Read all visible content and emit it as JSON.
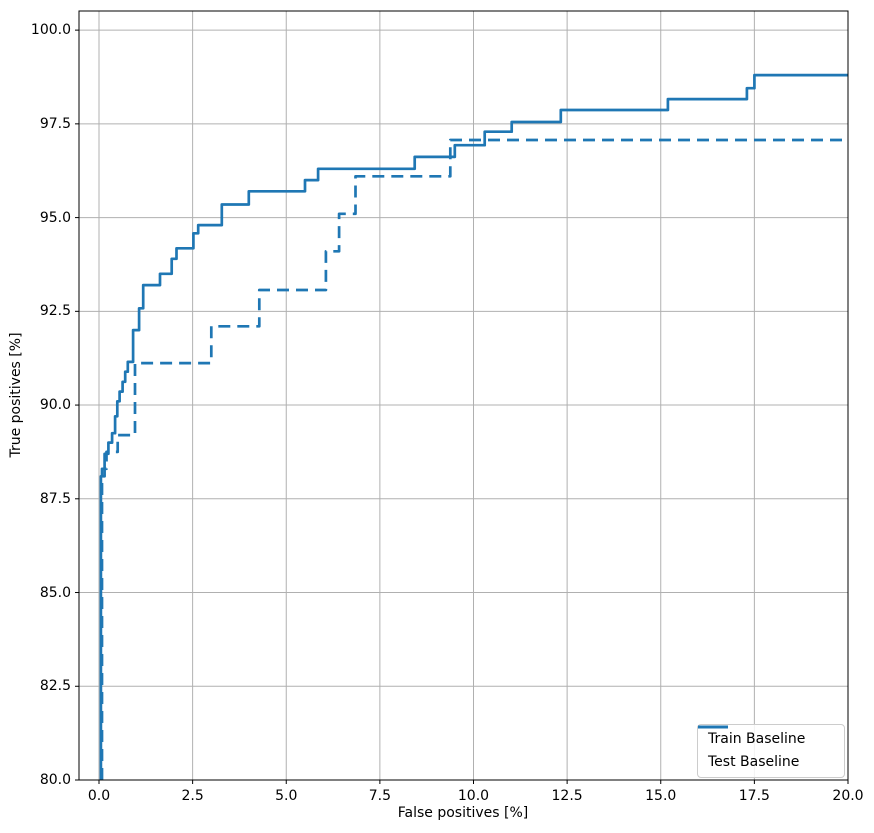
{
  "chart_data": {
    "type": "line",
    "title": "",
    "xlabel": "False positives [%]",
    "ylabel": "True positives [%]",
    "xlim": [
      -0.534,
      20.0
    ],
    "ylim": [
      80.0,
      100.51
    ],
    "x_ticks": [
      "0.0",
      "2.5",
      "5.0",
      "7.5",
      "10.0",
      "12.5",
      "15.0",
      "17.5",
      "20.0"
    ],
    "y_ticks": [
      "80.0",
      "82.5",
      "85.0",
      "87.5",
      "90.0",
      "92.5",
      "95.0",
      "97.5",
      "100.0"
    ],
    "grid": true,
    "grid_color": "#b0b0b0",
    "line_color": "#1f77b4",
    "legend_position": "lower right",
    "series": [
      {
        "name": "Train Baseline",
        "style": "solid",
        "drawstyle": "steps-post",
        "end_x": 20.0,
        "steps": [
          [
            0.05,
            80.0
          ],
          [
            0.05,
            88.1
          ],
          [
            0.15,
            88.7
          ],
          [
            0.25,
            89.0
          ],
          [
            0.35,
            89.25
          ],
          [
            0.43,
            89.7
          ],
          [
            0.49,
            90.1
          ],
          [
            0.55,
            90.36
          ],
          [
            0.63,
            90.62
          ],
          [
            0.7,
            90.89
          ],
          [
            0.77,
            91.15
          ],
          [
            0.91,
            92.0
          ],
          [
            1.07,
            92.58
          ],
          [
            1.18,
            93.2
          ],
          [
            1.63,
            93.5
          ],
          [
            1.94,
            93.9
          ],
          [
            2.07,
            94.18
          ],
          [
            2.52,
            94.58
          ],
          [
            2.65,
            94.8
          ],
          [
            3.28,
            95.35
          ],
          [
            4.0,
            95.7
          ],
          [
            5.5,
            96.0
          ],
          [
            5.85,
            96.3
          ],
          [
            8.43,
            96.62
          ],
          [
            9.5,
            96.93
          ],
          [
            10.3,
            97.29
          ],
          [
            11.02,
            97.55
          ],
          [
            12.33,
            97.87
          ],
          [
            15.19,
            98.16
          ],
          [
            17.3,
            98.45
          ],
          [
            17.5,
            98.8
          ]
        ]
      },
      {
        "name": "Test Baseline",
        "style": "dashed",
        "drawstyle": "steps-post",
        "end_x": 20.0,
        "steps": [
          [
            0.08,
            80.0
          ],
          [
            0.08,
            88.3
          ],
          [
            0.2,
            88.75
          ],
          [
            0.5,
            89.2
          ],
          [
            0.96,
            91.12
          ],
          [
            3.0,
            92.1
          ],
          [
            4.28,
            93.07
          ],
          [
            6.06,
            94.1
          ],
          [
            6.41,
            95.1
          ],
          [
            6.85,
            96.1
          ],
          [
            9.38,
            97.07
          ]
        ]
      }
    ]
  },
  "legend": {
    "items": [
      {
        "label": "Train Baseline",
        "style": "solid"
      },
      {
        "label": "Test Baseline",
        "style": "dashed"
      }
    ]
  }
}
